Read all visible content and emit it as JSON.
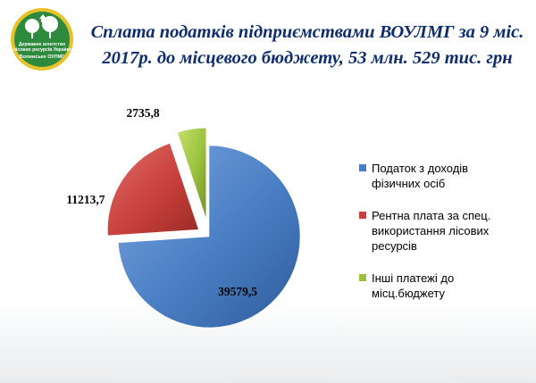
{
  "title": {
    "line1": "Сплата податків підприємствами ВОУЛМГ за 9 міс.",
    "line2": "2017р. до місцевого бюджету, 53 млн. 529 тис. грн"
  },
  "logo": {
    "line1": "Державне агентство",
    "line2": "лісових ресурсів України",
    "line3": "Волинське ОУЛМГ"
  },
  "colors": {
    "blue": "#4a7ec4",
    "red": "#c9403c",
    "green": "#9bc13c",
    "title": "#0f2d6e",
    "logo_green": "#2e8b3e",
    "logo_ring": "#e8c22a"
  },
  "chart_data": {
    "type": "pie",
    "exploded": true,
    "legend_position": "right",
    "slices": [
      {
        "name": "Податок з доходів фізичних осіб",
        "value": 39579.5,
        "label": "39579,5",
        "color": "#4a7ec4"
      },
      {
        "name": "Рентна плата за спец. використання лісових ресурсів",
        "value": 11213.7,
        "label": "11213,7",
        "color": "#c9403c"
      },
      {
        "name": "Інші платежі до місц.бюджету",
        "value": 2735.8,
        "label": "2735,8",
        "color": "#9bc13c"
      }
    ]
  },
  "legend": {
    "items": [
      {
        "line1": "Податок з доходів",
        "line2": "фізичних осіб",
        "line3": ""
      },
      {
        "line1": "Рентна плата за спец.",
        "line2": "використання лісових",
        "line3": "ресурсів"
      },
      {
        "line1": "Інші платежі до",
        "line2": "місц.бюджету",
        "line3": ""
      }
    ]
  }
}
